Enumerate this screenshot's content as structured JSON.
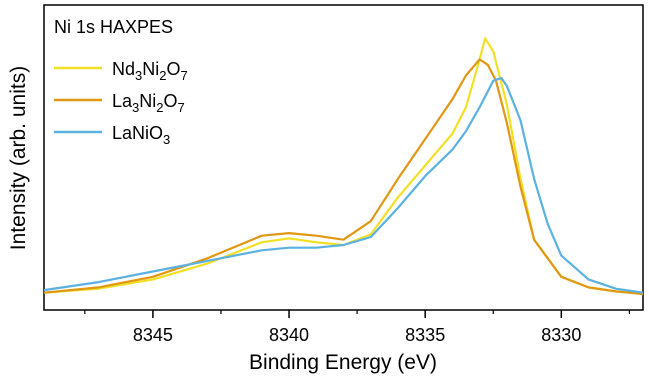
{
  "chart_data": {
    "type": "line",
    "title": "Ni 1s HAXPES",
    "xlabel": "Binding Energy (eV)",
    "ylabel": "Intensity (arb. units)",
    "xlim": [
      8349,
      8327
    ],
    "x_reversed": true,
    "ylim": [
      0,
      1.0
    ],
    "x_ticks": [
      8345,
      8340,
      8335,
      8330
    ],
    "y_ticks": [],
    "grid": false,
    "legend_position": "top-left",
    "series": [
      {
        "name": "Nd3Ni2O7",
        "legend_label": {
          "base1": "Nd",
          "sub1": "3",
          "base2": "Ni",
          "sub2": "2",
          "base3": "O",
          "sub3": "7"
        },
        "color": "#f2e024",
        "x": [
          8349,
          8347,
          8345,
          8343,
          8341,
          8340,
          8339,
          8338,
          8337,
          8336,
          8335,
          8334,
          8333.5,
          8333,
          8332.8,
          8332.5,
          8332,
          8331.5,
          8331,
          8330,
          8329,
          8328,
          8327
        ],
        "y": [
          0.02,
          0.035,
          0.07,
          0.13,
          0.21,
          0.225,
          0.21,
          0.2,
          0.24,
          0.38,
          0.5,
          0.62,
          0.72,
          0.9,
          0.98,
          0.93,
          0.73,
          0.45,
          0.22,
          0.08,
          0.04,
          0.025,
          0.015
        ]
      },
      {
        "name": "La3Ni2O7",
        "legend_label": {
          "base1": "La",
          "sub1": "3",
          "base2": "Ni",
          "sub2": "2",
          "base3": "O",
          "sub3": "7"
        },
        "color": "#e09714",
        "x": [
          8349,
          8347,
          8345,
          8343,
          8341,
          8340,
          8339,
          8338,
          8337,
          8336,
          8335,
          8334,
          8333.5,
          8333,
          8332.7,
          8332.4,
          8332,
          8331.5,
          8331,
          8330,
          8329,
          8328,
          8327
        ],
        "y": [
          0.02,
          0.04,
          0.08,
          0.15,
          0.235,
          0.245,
          0.235,
          0.22,
          0.29,
          0.45,
          0.6,
          0.75,
          0.84,
          0.9,
          0.88,
          0.82,
          0.66,
          0.42,
          0.22,
          0.08,
          0.04,
          0.025,
          0.015
        ]
      },
      {
        "name": "LaNiO3",
        "legend_label": {
          "base1": "LaNiO",
          "sub1": "3",
          "base2": "",
          "sub2": "",
          "base3": "",
          "sub3": ""
        },
        "color": "#5bb1e0",
        "x": [
          8349,
          8347,
          8345,
          8343,
          8341,
          8340,
          8339,
          8338,
          8337,
          8336,
          8335,
          8334,
          8333.5,
          8333,
          8332.5,
          8332.2,
          8332,
          8331.5,
          8331,
          8330.5,
          8330,
          8329,
          8328,
          8327
        ],
        "y": [
          0.03,
          0.06,
          0.1,
          0.14,
          0.18,
          0.19,
          0.19,
          0.2,
          0.23,
          0.34,
          0.46,
          0.56,
          0.63,
          0.72,
          0.82,
          0.83,
          0.8,
          0.67,
          0.45,
          0.28,
          0.16,
          0.07,
          0.035,
          0.02
        ]
      }
    ]
  }
}
